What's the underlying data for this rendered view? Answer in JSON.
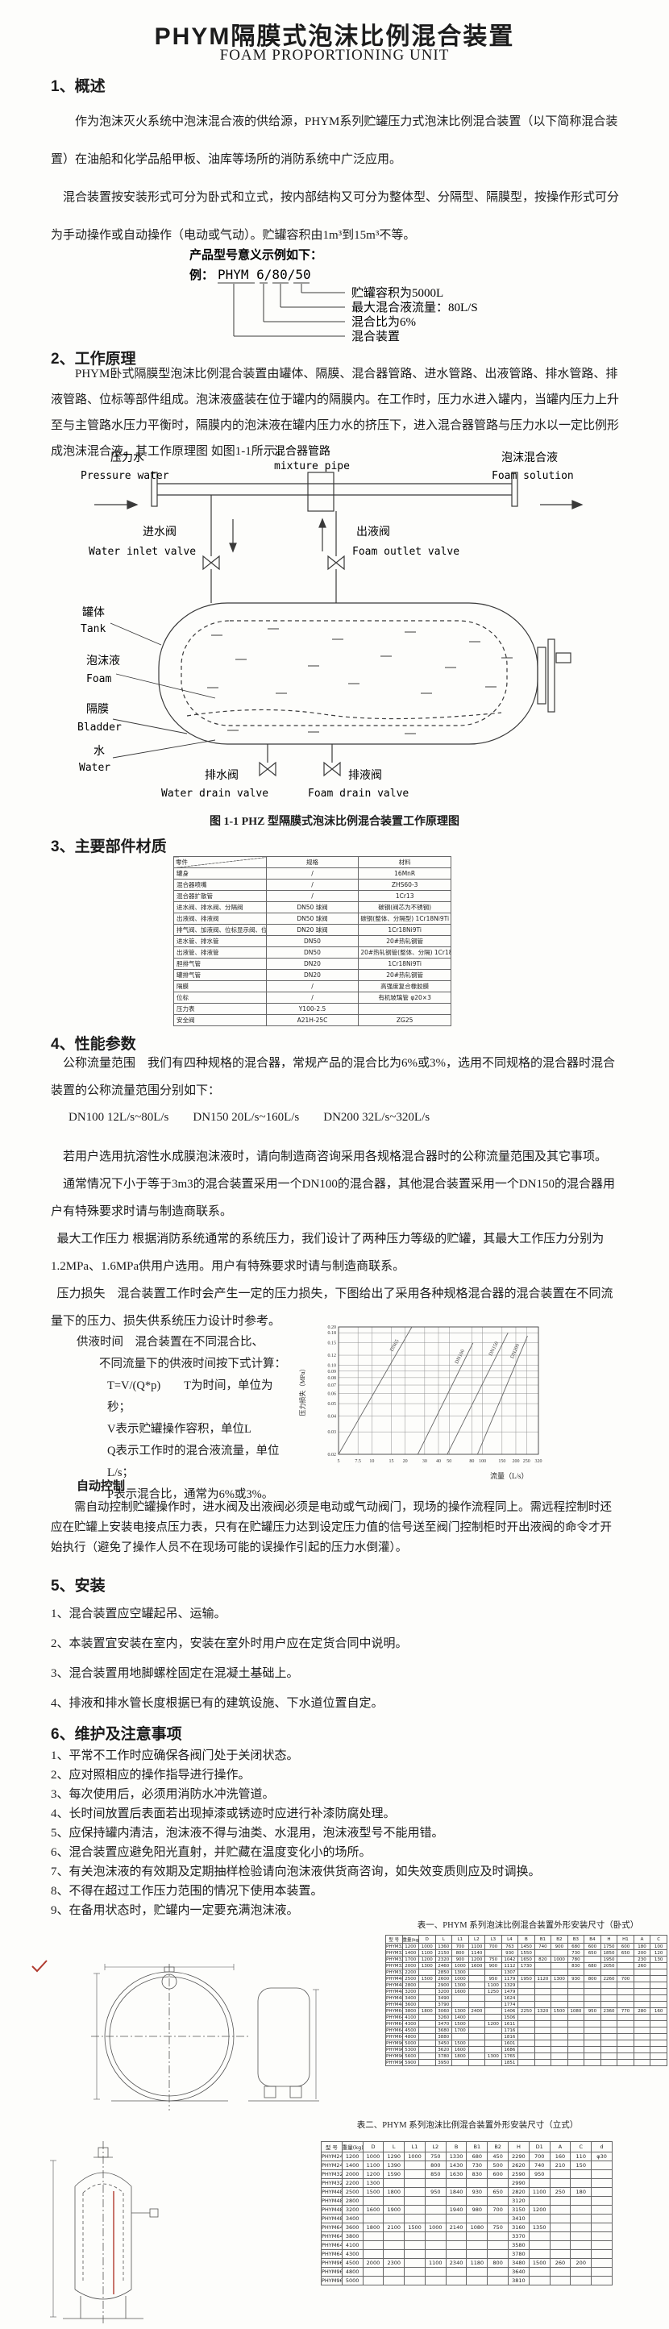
{
  "colors": {
    "ink": "#1c1c1c",
    "line_gray": "#3a3a3a",
    "accent_red": "#b03a2e"
  },
  "page": {
    "title": "PHYM隔膜式泡沫比例混合装置",
    "subtitle": "FOAM PROPORTIONING UNIT"
  },
  "overview": {
    "heading": "1、概述",
    "p1": "作为泡沫灭火系统中泡沫混合液的供给源，PHYM系列贮罐压力式泡沫比例混合装置（以下简称混合装置）在油船和化学品船甲板、油库等场所的消防系统中广泛应用。",
    "p2": "混合装置按安装形式可分为卧式和立式，按内部结构又可分为整体型、分隔型、隔膜型，按操作形式可分为手动操作或自动操作（电动或气动）。贮罐容积由1m³到15m³不等。"
  },
  "model_example": {
    "intro": "产品型号意义示例如下：",
    "example_prefix": "例：",
    "code": "PHYM 6/80/50",
    "labels": [
      "贮罐容积为5000L",
      "最大混合液流量：80L/S",
      "混合比为6%",
      "混合装置"
    ]
  },
  "principle": {
    "heading": "2、工作原理",
    "p1": "PHYM卧式隔膜型泡沫比例混合装置由罐体、隔膜、混合器管路、进水管路、出液管路、排水管路、排液管路、位标等部件组成。泡沫液盛装在位于罐内的隔膜内。在工作时，压力水进入罐内，当罐内压力上升至与主管路水压力平衡时，隔膜内的泡沫液在罐内压力水的挤压下，进入混合器管路与压力水以一定比例形成泡沫混合液。其工作原理图 如图1-1所示。"
  },
  "figure": {
    "caption": "图 1-1 PHZ 型隔膜式泡沫比例混合装置工作原理图",
    "labels": {
      "pressure_water": {
        "zh": "压力水",
        "en": "Pressure water"
      },
      "mixture_pipe": {
        "zh": "混合器管路",
        "en": "mixture pipe"
      },
      "foam_solution": {
        "zh": "泡沫混合液",
        "en": "Foam solution"
      },
      "water_inlet_valve": {
        "zh": "进水阀",
        "en": "Water inlet valve"
      },
      "foam_outlet_valve": {
        "zh": "出液阀",
        "en": "Foam outlet valve"
      },
      "tank": {
        "zh": "罐体",
        "en": "Tank"
      },
      "foam": {
        "zh": "泡沫液",
        "en": "Foam"
      },
      "bladder": {
        "zh": "隔膜",
        "en": "Bladder"
      },
      "water": {
        "zh": "水",
        "en": "Water"
      },
      "water_drain_valve": {
        "zh": "排水阀",
        "en": "Water drain valve"
      },
      "foam_drain_valve": {
        "zh": "排液阀",
        "en": "Foam drain valve"
      }
    }
  },
  "materials": {
    "heading": "3、主要部件材质",
    "table": {
      "headers": [
        "零件",
        "规格",
        "材料"
      ],
      "rows": [
        [
          "罐身",
          "/",
          "16MnR"
        ],
        [
          "混合器喷嘴",
          "/",
          "ZHS60-3"
        ],
        [
          "混合器扩散管",
          "/",
          "1Cr13"
        ],
        [
          "进水阀、排水阀、分隔阀",
          "DN50 球阀",
          "碳钢(阀芯为不锈钢)"
        ],
        [
          "出液阀、排液阀",
          "DN50 球阀",
          "碳钢(整体、分隔型) 1Cr18Ni9Ti"
        ],
        [
          "排气阀、加液阀、位标显示阀、位标放空阀",
          "DN20 球阀",
          "1Cr18Ni9Ti"
        ],
        [
          "进水管、排水管",
          "DN50",
          "20#热轧钢管"
        ],
        [
          "出液管、排液管",
          "DN50",
          "20#热轧钢管(整体、分隔) 1Cr18Ni9Ti(隔膜型)"
        ],
        [
          "胆排气管",
          "DN20",
          "1Cr18Ni9Ti"
        ],
        [
          "罐排气管",
          "DN20",
          "20#热轧钢管"
        ],
        [
          "隔膜",
          "/",
          "高强度复合橡胶膜"
        ],
        [
          "位标",
          "/",
          "有机玻璃管 φ20×3"
        ],
        [
          "压力表",
          "Y100-2.5",
          ""
        ],
        [
          "安全阀",
          "A21H-25C",
          "ZG25"
        ]
      ]
    }
  },
  "performance": {
    "heading": "4、性能参数",
    "p1": "公称流量范围　我们有四种规格的混合器，常规产品的混合比为6%或3%，选用不同规格的混合器时混合装置的公称流量范围分别如下：",
    "flow_line": "DN100  12L/s~80L/s　　DN150  20L/s~160L/s　　DN200  32L/s~320L/s",
    "p2": "若用户选用抗溶性水成膜泡沫液时，请向制造商咨询采用各规格混合器时的公称流量范围及其它事项。",
    "p3": "通常情况下小于等于3m3的混合装置采用一个DN100的混合器，其他混合装置采用一个DN150的混合器用户有特殊要求时请与制造商联系。",
    "p4": "最大工作压力 根据消防系统通常的系统压力，我们设计了两种压力等级的贮罐，其最大工作压力分别为1.2MPa、1.6MPa供用户选用。用户有特殊要求时请与制造商联系。",
    "p5": "压力损失　混合装置工作时会产生一定的压力损失，下图给出了采用各种规格混合器的混合装置在不同流量下的压力、损失供系统压力设计时参考。"
  },
  "supply_time": {
    "lines": [
      "供液时间　混合装置在不同混合比、",
      "不同流量下的供液时间按下式计算：",
      "T=V/(Q*p)　　T为时间，单位为秒；",
      "V表示贮罐操作容积，单位L",
      "Q表示工作时的混合液流量，单位L/s；",
      "P表示混合比，通常为6%或3%。"
    ]
  },
  "auto_control": {
    "heading": "自动控制",
    "p1": "需自动控制贮罐操作时，进水阀及出液阀必须是电动或气动阀门，现场的操作流程同上。需远程控制时还应在贮罐上安装电接点压力表，只有在贮罐压力达到设定压力值的信号送至阀门控制柜时开出液阀的命令才开始执行（避免了操作人员不在现场可能的误操作引起的压力水倒灌）。"
  },
  "chart_data": {
    "type": "line",
    "title": "",
    "xlabel": "流量（L/s）",
    "ylabel": "压力损失（MPa）",
    "x_scale": "log",
    "y_scale": "log",
    "xlim": [
      5,
      320
    ],
    "ylim": [
      0.02,
      0.2
    ],
    "grid": true,
    "x_ticks": [
      5,
      7.5,
      10,
      15,
      20,
      30,
      40,
      50,
      80,
      100,
      150,
      200,
      250,
      320
    ],
    "y_ticks": [
      0.02,
      0.03,
      0.04,
      0.05,
      0.06,
      0.07,
      0.08,
      0.09,
      0.1,
      0.12,
      0.15,
      0.18,
      0.2
    ],
    "series": [
      {
        "name": "DN65",
        "x": [
          5,
          23
        ],
        "y": [
          0.02,
          0.2
        ]
      },
      {
        "name": "DN100",
        "x": [
          26,
          82
        ],
        "y": [
          0.02,
          0.15
        ]
      },
      {
        "name": "DN150",
        "x": [
          48,
          170
        ],
        "y": [
          0.02,
          0.18
        ]
      },
      {
        "name": "DN200",
        "x": [
          90,
          255
        ],
        "y": [
          0.02,
          0.17
        ]
      }
    ]
  },
  "install": {
    "heading": "5、安装",
    "items": [
      "1、混合装置应空罐起吊、运输。",
      "2、本装置宜安装在室内，安装在室外时用户应在定货合同中说明。",
      "3、混合装置用地脚螺栓固定在混凝土基础上。",
      "4、排液和排水管长度根据已有的建筑设施、下水道位置自定。"
    ]
  },
  "maintenance": {
    "heading": "6、维护及注意事项",
    "items": [
      "1、平常不工作时应确保各阀门处于关闭状态。",
      "2、应对照相应的操作指导进行操作。",
      "3、每次使用后，必须用消防水冲洗管道。",
      "4、长时间放置后表面若出现掉漆或锈迹时应进行补漆防腐处理。",
      "5、应保持罐内清洁，泡沫液不得与油类、水混用，泡沫液型号不能用错。",
      "6、混合装置应避免阳光直射，并贮藏在温度变化小的场所。",
      "7、有关泡沫液的有效期及定期抽样检验请向泡沫液供货商咨询，如失效变质则应及时调换。",
      "8、不得在超过工作压力范围的情况下使用本装置。",
      "9、在备用状态时，贮罐内一定要充满泡沫液。"
    ]
  },
  "table1": {
    "caption": "表一、PHYM 系列泡沫比例混合装置外形安装尺寸（卧式）",
    "headers": [
      "型  号",
      "重量(kg)",
      "D",
      "L",
      "L1",
      "L2",
      "L3",
      "L4",
      "B",
      "B1",
      "B2",
      "B3",
      "B4",
      "H",
      "H1",
      "A",
      "C"
    ],
    "rows": [
      [
        "PHYM32/10",
        "1200",
        "1000",
        "1360",
        "700",
        "1100",
        "700",
        "763",
        "1450",
        "740",
        "900",
        "680",
        "600",
        "1750",
        "600",
        "180",
        "100"
      ],
      [
        "PHYM32/15",
        "1400",
        "1100",
        "2150",
        "800",
        "1140",
        "",
        "930",
        "1550",
        "",
        "",
        "730",
        "650",
        "1850",
        "650",
        "200",
        "120"
      ],
      [
        "PHYM32/20",
        "1700",
        "1200",
        "2320",
        "900",
        "1200",
        "750",
        "1042",
        "1650",
        "820",
        "1000",
        "780",
        "",
        "1950",
        "",
        "230",
        "130"
      ],
      [
        "PHYM32/25",
        "2000",
        "1300",
        "2460",
        "1000",
        "1600",
        "900",
        "1112",
        "1730",
        "",
        "",
        "830",
        "680",
        "2050",
        "",
        "260",
        ""
      ],
      [
        "PHYM32/30",
        "2200",
        "",
        "2850",
        "1300",
        "",
        "",
        "1307",
        "",
        "",
        "",
        "",
        "",
        "",
        "",
        "",
        ""
      ],
      [
        "PHYM48/30",
        "2500",
        "1500",
        "2600",
        "1000",
        "",
        "950",
        "1179",
        "1950",
        "1120",
        "1300",
        "930",
        "800",
        "2260",
        "700",
        "",
        ""
      ],
      [
        "PHYM48/35",
        "2800",
        "",
        "2900",
        "1300",
        "",
        "1100",
        "1329",
        "",
        "",
        "",
        "",
        "",
        "",
        "",
        "",
        ""
      ],
      [
        "PHYM48/40",
        "3200",
        "",
        "3200",
        "1600",
        "",
        "1250",
        "1479",
        "",
        "",
        "",
        "",
        "",
        "",
        "",
        "",
        ""
      ],
      [
        "PHYM48/45",
        "3400",
        "",
        "3490",
        "",
        "",
        "",
        "1624",
        "",
        "",
        "",
        "",
        "",
        "",
        "",
        "",
        ""
      ],
      [
        "PHYM48/50",
        "3600",
        "",
        "3790",
        "",
        "",
        "",
        "1774",
        "",
        "",
        "",
        "",
        "",
        "",
        "",
        "",
        ""
      ],
      [
        "PHYM64/50",
        "3800",
        "1800",
        "3060",
        "1300",
        "2400",
        "",
        "1406",
        "2250",
        "1320",
        "1500",
        "1080",
        "950",
        "2360",
        "770",
        "280",
        "160"
      ],
      [
        "PHYM64/55",
        "4100",
        "",
        "3260",
        "1400",
        "",
        "",
        "1506",
        "",
        "",
        "",
        "",
        "",
        "",
        "",
        "",
        ""
      ],
      [
        "PHYM64/60",
        "4300",
        "",
        "3470",
        "1500",
        "",
        "1200",
        "1611",
        "",
        "",
        "",
        "",
        "",
        "",
        "",
        "",
        ""
      ],
      [
        "PHYM64/65",
        "4500",
        "",
        "3680",
        "1700",
        "",
        "",
        "1716",
        "",
        "",
        "",
        "",
        "",
        "",
        "",
        "",
        ""
      ],
      [
        "PHYM64/70",
        "4800",
        "",
        "3880",
        "",
        "",
        "",
        "1816",
        "",
        "",
        "",
        "",
        "",
        "",
        "",
        "",
        ""
      ],
      [
        "PHYM96/75",
        "5000",
        "",
        "3450",
        "1500",
        "",
        "",
        "1601",
        "",
        "",
        "",
        "",
        "",
        "",
        "",
        "",
        ""
      ],
      [
        "PHYM96/80",
        "5300",
        "",
        "3620",
        "1600",
        "",
        "",
        "1686",
        "",
        "",
        "",
        "",
        "",
        "",
        "",
        "",
        ""
      ],
      [
        "PHYM96/85",
        "5600",
        "",
        "3780",
        "1800",
        "",
        "1300",
        "1765",
        "",
        "",
        "",
        "",
        "",
        "",
        "",
        "",
        ""
      ],
      [
        "PHYM96/90",
        "5900",
        "",
        "3950",
        "",
        "",
        "",
        "1851",
        "",
        "",
        "",
        "",
        "",
        "",
        "",
        "",
        ""
      ]
    ]
  },
  "table2": {
    "caption": "表二、PHYM 系列泡沫比例混合装置外形安装尺寸（立式）",
    "headers": [
      "型  号",
      "重量(kg)",
      "D",
      "L",
      "L1",
      "L2",
      "B",
      "B1",
      "B2",
      "H",
      "D1",
      "A",
      "C",
      "d"
    ],
    "rows": [
      [
        "PHYM24/10",
        "1200",
        "1000",
        "1290",
        "1000",
        "750",
        "1330",
        "680",
        "450",
        "2290",
        "700",
        "160",
        "110",
        "φ30"
      ],
      [
        "PHYM24/15",
        "1400",
        "1100",
        "1390",
        "",
        "800",
        "1430",
        "730",
        "500",
        "2620",
        "740",
        "210",
        "150",
        ""
      ],
      [
        "PHYM32/20",
        "2000",
        "1200",
        "1590",
        "",
        "850",
        "1630",
        "830",
        "600",
        "2590",
        "950",
        "",
        "",
        ""
      ],
      [
        "PHYM32/25",
        "2200",
        "1300",
        "",
        "",
        "",
        "",
        "",
        "",
        "2990",
        "",
        "",
        "",
        ""
      ],
      [
        "PHYM48/30",
        "2500",
        "1500",
        "1800",
        "",
        "950",
        "1840",
        "930",
        "650",
        "2820",
        "1100",
        "250",
        "180",
        ""
      ],
      [
        "PHYM48/35",
        "2800",
        "",
        "",
        "",
        "",
        "",
        "",
        "",
        "3120",
        "",
        "",
        "",
        ""
      ],
      [
        "PHYM48/40",
        "3200",
        "1600",
        "1900",
        "",
        "",
        "1940",
        "980",
        "700",
        "3150",
        "1200",
        "",
        "",
        ""
      ],
      [
        "PHYM48/45",
        "3400",
        "",
        "",
        "",
        "",
        "",
        "",
        "",
        "3410",
        "",
        "",
        "",
        ""
      ],
      [
        "PHYM64/50",
        "3600",
        "1800",
        "2100",
        "1500",
        "1000",
        "2140",
        "1080",
        "750",
        "3160",
        "1350",
        "",
        "",
        ""
      ],
      [
        "PHYM64/55",
        "3800",
        "",
        "",
        "",
        "",
        "",
        "",
        "",
        "3370",
        "",
        "",
        "",
        ""
      ],
      [
        "PHYM64/60",
        "4100",
        "",
        "",
        "",
        "",
        "",
        "",
        "",
        "3580",
        "",
        "",
        "",
        ""
      ],
      [
        "PHYM64/65",
        "4300",
        "",
        "",
        "",
        "",
        "",
        "",
        "",
        "3780",
        "",
        "",
        "",
        ""
      ],
      [
        "PHYM96/70",
        "4500",
        "2000",
        "2300",
        "",
        "1100",
        "2340",
        "1180",
        "800",
        "3480",
        "1500",
        "260",
        "200",
        ""
      ],
      [
        "PHYM96/75",
        "4800",
        "",
        "",
        "",
        "",
        "",
        "",
        "",
        "3640",
        "",
        "",
        "",
        ""
      ],
      [
        "PHYM96/80",
        "5000",
        "",
        "",
        "",
        "",
        "",
        "",
        "",
        "3810",
        "",
        "",
        "",
        ""
      ]
    ]
  }
}
